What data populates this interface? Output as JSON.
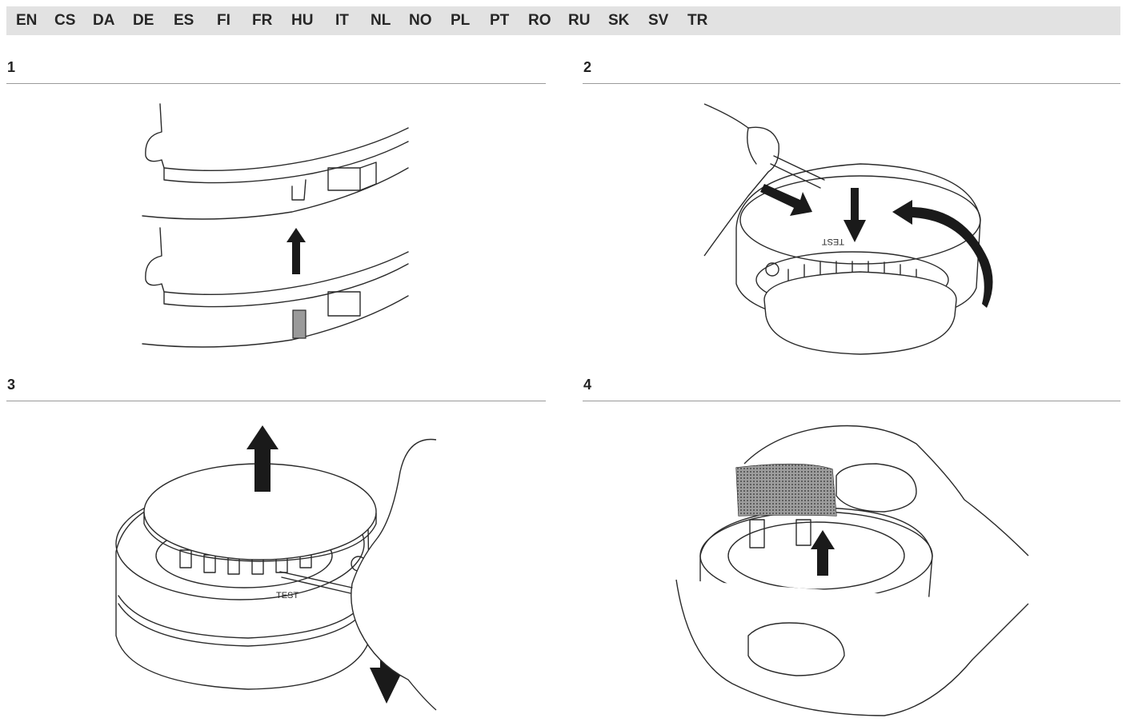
{
  "languages": [
    "EN",
    "CS",
    "DA",
    "DE",
    "ES",
    "FI",
    "FR",
    "HU",
    "IT",
    "NL",
    "NO",
    "PL",
    "PT",
    "RO",
    "RU",
    "SK",
    "SV",
    "TR"
  ],
  "steps": [
    {
      "number": "1"
    },
    {
      "number": "2",
      "label": "TEST"
    },
    {
      "number": "3",
      "label": "TEST"
    },
    {
      "number": "4"
    }
  ],
  "colors": {
    "langbar_bg": "#e2e2e2",
    "rule": "#9a9a9a",
    "arrow": "#1a1a1a"
  }
}
